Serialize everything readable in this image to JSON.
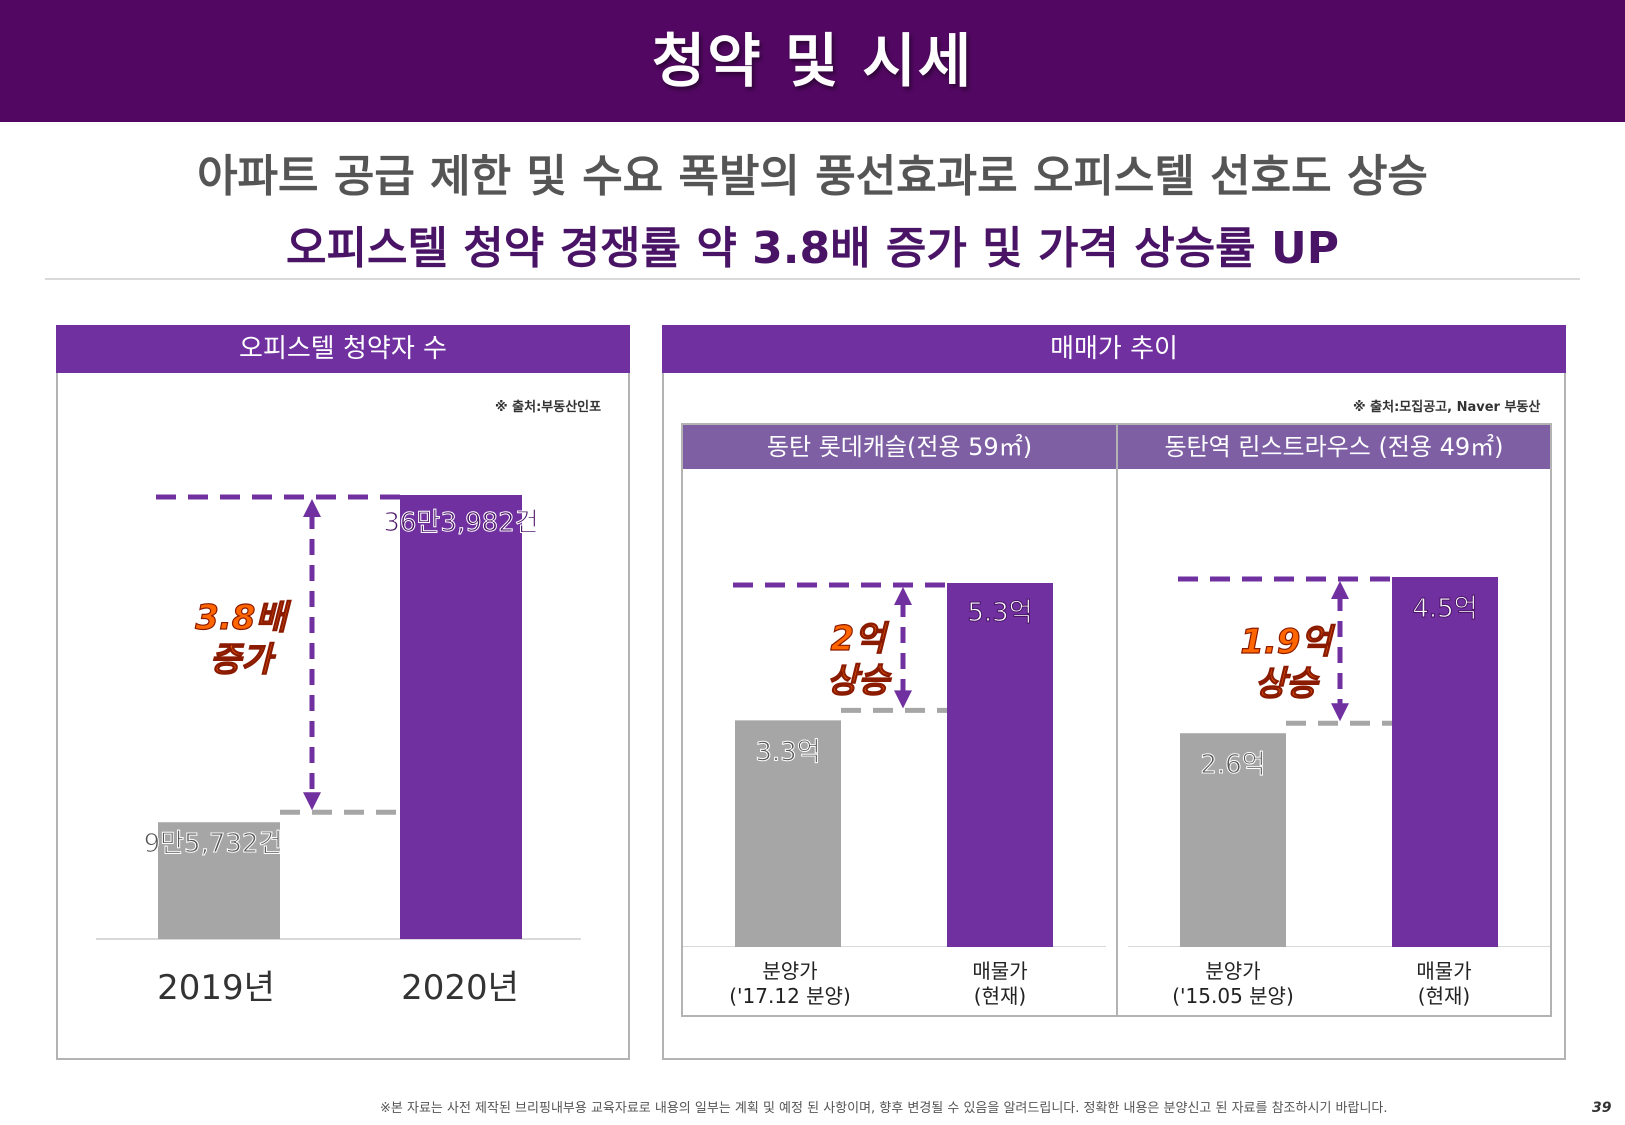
{
  "header": {
    "title": "청약 및 시세"
  },
  "headline": {
    "line1": "아파트 공급 제한 및 수요 폭발의 풍선효과로 오피스텔 선호도 상승",
    "line2": "오피스텔 청약 경쟁률 약 3.8배 증가 및 가격 상승률 UP"
  },
  "left_panel": {
    "title": "오피스텔 청약자 수",
    "source": "※ 출처:부동산인포",
    "annotation_line1": "3.8배",
    "annotation_line2": "증가"
  },
  "right_panel": {
    "title": "매매가 추이",
    "source": "※ 출처:모집공고, Naver 부동산",
    "sub1": {
      "title": "동탄 롯데캐슬(전용 59㎡)",
      "annotation_line1": "2억",
      "annotation_line2": "상승"
    },
    "sub2": {
      "title": "동탄역 린스트라우스 (전용 49㎡)",
      "annotation_line1": "1.9억",
      "annotation_line2": "상승"
    }
  },
  "colors": {
    "header_bg": "#520862",
    "accent": "#7030a0",
    "sub_header": "#7e5fa4",
    "gray_bar": "#a6a6a6",
    "annotation": "#ff6600"
  },
  "footer": {
    "note": "※본 자료는 사전 제작된 브리핑내부용 교육자료로 내용의 일부는 계획 및 예정 된 사항이며, 향후 변경될 수 있음을 알려드립니다. 정확한 내용은 분양신고 된 자료를 참조하시기 바랍니다.",
    "page": "39"
  },
  "chart_data": [
    {
      "type": "bar",
      "title": "오피스텔 청약자 수",
      "categories": [
        "2019년",
        "2020년"
      ],
      "values": [
        95732,
        363982
      ],
      "labels": [
        "9만5,732건",
        "36만3,982건"
      ],
      "colors": [
        "#a6a6a6",
        "#7030a0"
      ]
    },
    {
      "type": "bar",
      "title": "동탄 롯데캐슬(전용 59㎡)",
      "categories": [
        [
          "분양가",
          "('17.12 분양)"
        ],
        [
          "매물가",
          "(현재)"
        ]
      ],
      "values": [
        3.3,
        5.3
      ],
      "labels": [
        "3.3억",
        "5.3억"
      ],
      "colors": [
        "#a6a6a6",
        "#7030a0"
      ]
    },
    {
      "type": "bar",
      "title": "동탄역 린스트라우스 (전용 49㎡)",
      "categories": [
        [
          "분양가",
          "('15.05 분양)"
        ],
        [
          "매물가",
          "(현재)"
        ]
      ],
      "values": [
        2.6,
        4.5
      ],
      "labels": [
        "2.6억",
        "4.5억"
      ],
      "colors": [
        "#a6a6a6",
        "#7030a0"
      ]
    }
  ]
}
